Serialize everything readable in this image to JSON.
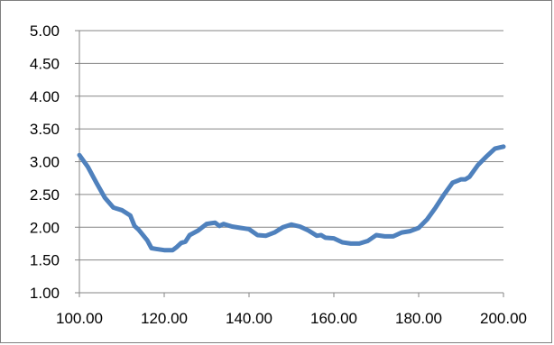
{
  "chart_data": {
    "type": "line",
    "title": "",
    "xlabel": "",
    "ylabel": "",
    "xlim": [
      100,
      200
    ],
    "ylim": [
      1.0,
      5.0
    ],
    "grid": true,
    "legend": "none",
    "x_ticks": [
      "100.00",
      "120.00",
      "140.00",
      "160.00",
      "180.00",
      "200.00"
    ],
    "y_ticks": [
      "5.00",
      "4.50",
      "4.00",
      "3.50",
      "3.00",
      "2.50",
      "2.00",
      "1.50",
      "1.00"
    ],
    "series": [
      {
        "color": "#4f81bd",
        "x": [
          100,
          102,
          104,
          106,
          108,
          109,
          110,
          112,
          113,
          114,
          116,
          117,
          118,
          120,
          122,
          123,
          124,
          125,
          126,
          128,
          130,
          131,
          132,
          133,
          134,
          136,
          138,
          139,
          140,
          142,
          144,
          146,
          148,
          150,
          152,
          154,
          156,
          157,
          158,
          160,
          162,
          164,
          166,
          168,
          170,
          172,
          174,
          176,
          178,
          180,
          182,
          184,
          186,
          188,
          190,
          191,
          192,
          194,
          196,
          198,
          200
        ],
        "y": [
          3.1,
          2.92,
          2.68,
          2.45,
          2.3,
          2.28,
          2.26,
          2.18,
          2.02,
          1.96,
          1.8,
          1.68,
          1.67,
          1.65,
          1.65,
          1.7,
          1.76,
          1.78,
          1.88,
          1.95,
          2.05,
          2.06,
          2.07,
          2.02,
          2.05,
          2.01,
          1.99,
          1.98,
          1.97,
          1.88,
          1.87,
          1.92,
          2.0,
          2.04,
          2.01,
          1.95,
          1.87,
          1.88,
          1.84,
          1.83,
          1.77,
          1.75,
          1.75,
          1.79,
          1.88,
          1.86,
          1.86,
          1.92,
          1.94,
          1.99,
          2.12,
          2.3,
          2.5,
          2.68,
          2.73,
          2.73,
          2.77,
          2.95,
          3.08,
          3.2,
          3.23
        ]
      }
    ]
  }
}
